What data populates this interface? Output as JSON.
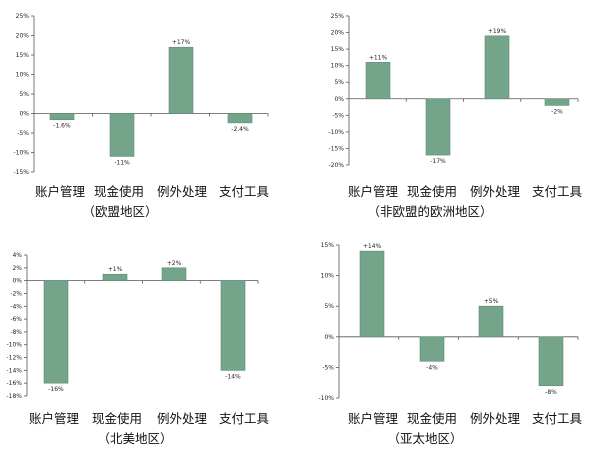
{
  "colors": {
    "bar": "#74A58A",
    "bar_stroke": "#5E8C73",
    "axis": "#555555"
  },
  "chart_data": [
    {
      "type": "bar",
      "title": "",
      "region_label": "（欧盟地区）",
      "categories": [
        "账户管理",
        "现金使用",
        "例外处理",
        "支付工具"
      ],
      "values": [
        -1.6,
        -11,
        17,
        -2.4
      ],
      "value_labels": [
        "-1.6%",
        "-11%",
        "+17%",
        "-2.4%"
      ],
      "ylim": [
        -15,
        25
      ],
      "yticks": [
        "25%",
        "20%",
        "15%",
        "10%",
        "5%",
        "0%",
        "-5%",
        "-10%",
        "-15%"
      ],
      "ytick_values": [
        25,
        20,
        15,
        10,
        5,
        0,
        -5,
        -10,
        -15
      ],
      "grid": false
    },
    {
      "type": "bar",
      "title": "",
      "region_label": "（非欧盟的欧洲地区）",
      "categories": [
        "账户管理",
        "现金使用",
        "例外处理",
        "支付工具"
      ],
      "values": [
        11,
        -17,
        19,
        -2
      ],
      "value_labels": [
        "+11%",
        "-17%",
        "+19%",
        "-2%"
      ],
      "ylim": [
        -20,
        25
      ],
      "yticks": [
        "25%",
        "20%",
        "15%",
        "10%",
        "5%",
        "0%",
        "-5%",
        "-10%",
        "-15%",
        "-20%"
      ],
      "ytick_values": [
        25,
        20,
        15,
        10,
        5,
        0,
        -5,
        -10,
        -15,
        -20
      ],
      "grid": false
    },
    {
      "type": "bar",
      "title": "",
      "region_label": "（北美地区）",
      "categories": [
        "账户管理",
        "现金使用",
        "例外处理",
        "支付工具"
      ],
      "values": [
        -16,
        1,
        2,
        -14
      ],
      "value_labels": [
        "-16%",
        "+1%",
        "+2%",
        "-14%"
      ],
      "ylim": [
        -18,
        4
      ],
      "yticks": [
        "4%",
        "2%",
        "0%",
        "-2%",
        "-4%",
        "-6%",
        "-8%",
        "-10%",
        "-12%",
        "-14%",
        "-16%",
        "-18%"
      ],
      "ytick_values": [
        4,
        2,
        0,
        -2,
        -4,
        -6,
        -8,
        -10,
        -12,
        -14,
        -16,
        -18
      ],
      "grid": false
    },
    {
      "type": "bar",
      "title": "",
      "region_label": "（亚太地区）",
      "categories": [
        "账户管理",
        "现金使用",
        "例外处理",
        "支付工具"
      ],
      "values": [
        14,
        -4,
        5,
        -8
      ],
      "value_labels": [
        "+14%",
        "-4%",
        "+5%",
        "-8%"
      ],
      "ylim": [
        -10,
        15
      ],
      "yticks": [
        "15%",
        "10%",
        "5%",
        "0%",
        "-5%",
        "-10%"
      ],
      "ytick_values": [
        15,
        10,
        5,
        0,
        -5,
        -10
      ],
      "grid": false
    }
  ]
}
